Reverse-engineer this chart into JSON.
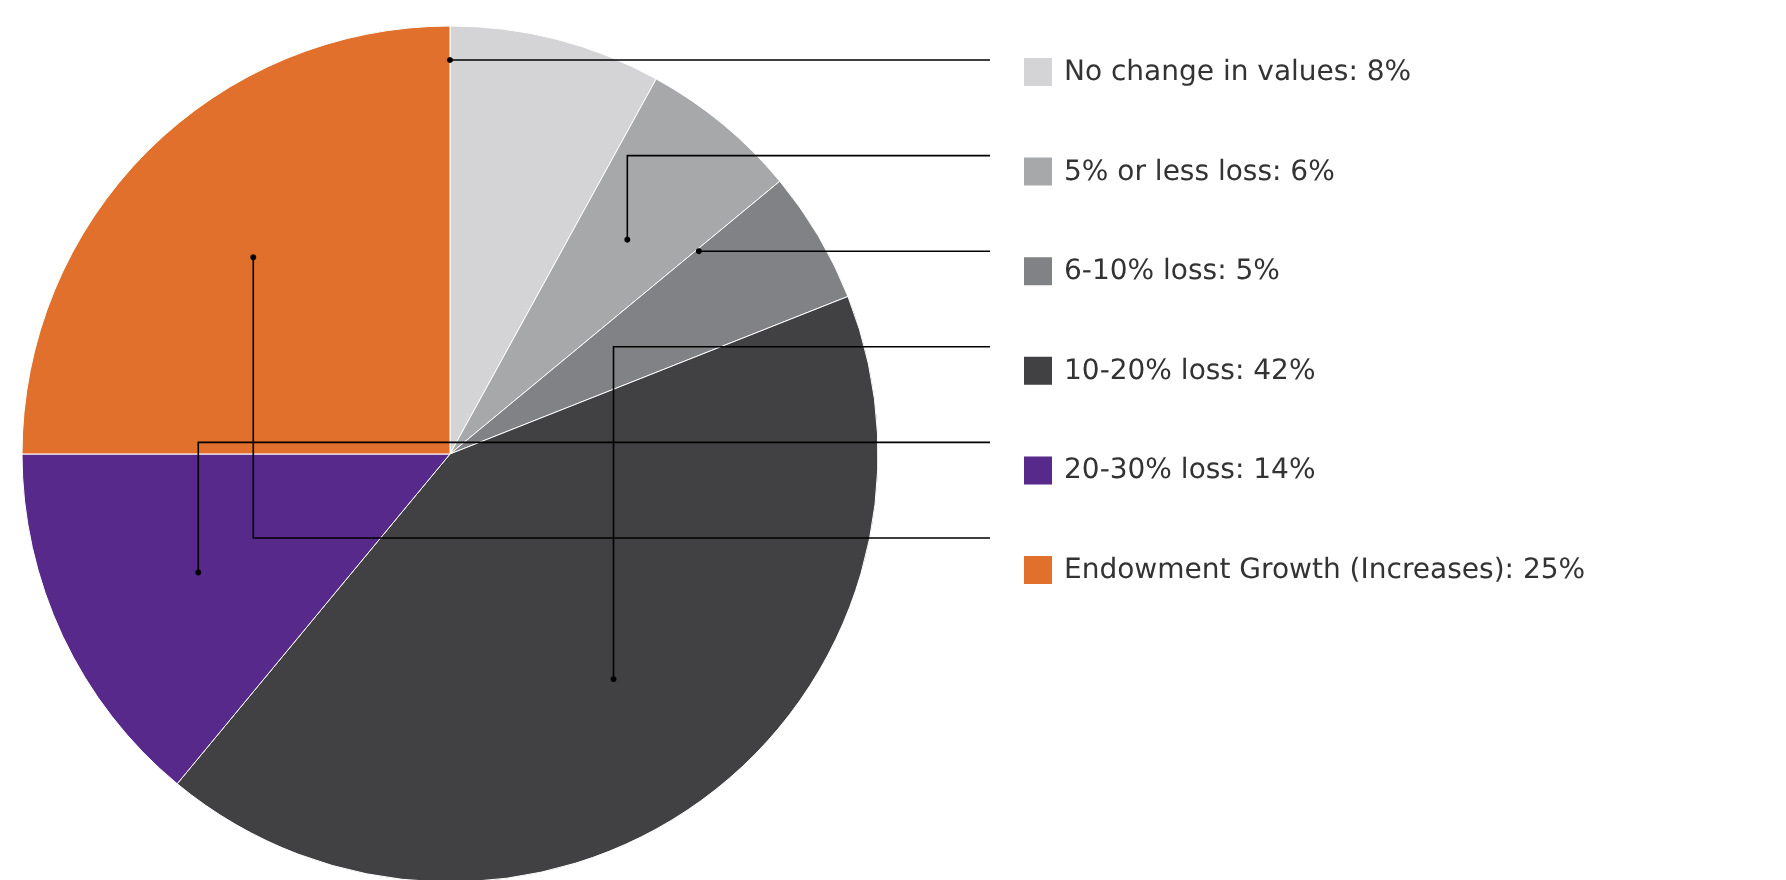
{
  "chart_data": {
    "type": "pie",
    "categories": [
      "No change in values: 8%",
      "5% or less loss: 6%",
      "6-10% loss: 5%",
      "10-20% loss: 42%",
      "20-30% loss: 14%",
      "Endowment Growth (Increases): 25%"
    ],
    "values": [
      8,
      6,
      5,
      42,
      14,
      25
    ],
    "colors": [
      "#d4d4d6",
      "#a7a8aa",
      "#818285",
      "#414143",
      "#57298a",
      "#e0702b"
    ],
    "legend": "right"
  }
}
